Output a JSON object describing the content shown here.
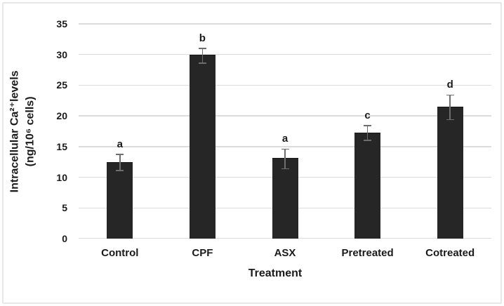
{
  "figure": {
    "background_color": "#ffffff",
    "border_color": "#e7e7e7"
  },
  "chart_data": {
    "type": "bar",
    "title": "",
    "categories": [
      "Control",
      "CPF",
      "ASX",
      "Pretreated",
      "Cotreated"
    ],
    "values": [
      12.4,
      29.8,
      13.0,
      17.2,
      21.4
    ],
    "errors": [
      1.3,
      1.2,
      1.6,
      1.2,
      2.0
    ],
    "sig_letters": [
      "a",
      "b",
      "a",
      "c",
      "d"
    ],
    "xlabel": "Treatment",
    "ylabel_line1": "Intracellular Ca²⁺levels",
    "ylabel_line2": "(ng/10⁶ cells)",
    "ylim": [
      0,
      35
    ],
    "yticks": [
      0,
      5,
      10,
      15,
      20,
      25,
      30,
      35
    ],
    "grid": "horizontal",
    "legend": "none",
    "bar_color": "#262626",
    "error_bar_color": "#6e6e6e",
    "gridline_color": "#dcdcdc",
    "text_color": "#1a1a1a"
  }
}
